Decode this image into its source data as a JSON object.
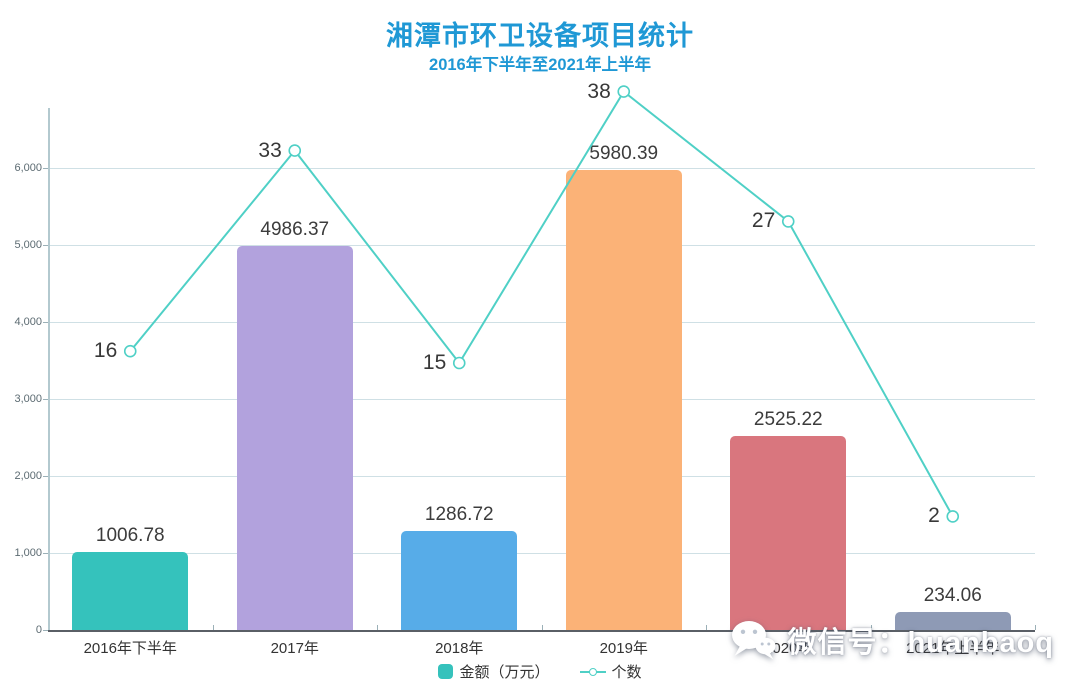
{
  "title": "湘潭市环卫设备项目统计",
  "subtitle": "2016年下半年至2021年上半年",
  "legend": {
    "amount_label": "金额（万元）",
    "count_label": "个数"
  },
  "watermark": {
    "text": "微信号：huanbaoq",
    "icon": "wechat-icon"
  },
  "colors": {
    "title": "#1F98D5",
    "line": "#4FD0C6",
    "grid": "#CFE0E5",
    "y_axis_line": "#B3C9CF",
    "x_axis_line": "#5A5F66",
    "tick": "#9BB0B7",
    "bar_colors": [
      "#35C2BC",
      "#B2A2DD",
      "#57ACE8",
      "#FBB277",
      "#D9767E",
      "#8E9AB5"
    ]
  },
  "chart_data": {
    "type": "bar",
    "title": "湘潭市环卫设备项目统计",
    "subtitle": "2016年下半年至2021年上半年",
    "categories": [
      "2016年下半年",
      "2017年",
      "2018年",
      "2019年",
      "2020年",
      "2021年上半年"
    ],
    "series": [
      {
        "name": "金额（万元）",
        "type": "bar",
        "values": [
          1006.78,
          4986.37,
          1286.72,
          5980.39,
          2525.22,
          234.06
        ],
        "data_labels": [
          "1006.78",
          "4986.37",
          "1286.72",
          "5980.39",
          "2525.22",
          "234.06"
        ]
      },
      {
        "name": "个数",
        "type": "line",
        "values": [
          16,
          33,
          15,
          38,
          27,
          2
        ],
        "data_labels": [
          "16",
          "33",
          "15",
          "38",
          "27",
          "2"
        ]
      }
    ],
    "y_axis": {
      "min": 0,
      "max": 6000,
      "tick_values": [
        0,
        1000,
        2000,
        3000,
        4000,
        5000,
        6000
      ],
      "tick_labels": [
        "0",
        "1,000",
        "2,000",
        "3,000",
        "4,000",
        "5,000",
        "6,000"
      ]
    },
    "grid": "horizontal",
    "legend_position": "bottom"
  }
}
